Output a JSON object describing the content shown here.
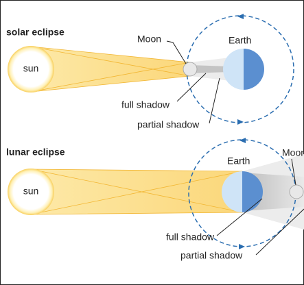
{
  "solar": {
    "title": "solar eclipse",
    "sun": "sun",
    "moon": "Moon",
    "earth": "Earth",
    "full_shadow": "full shadow",
    "partial_shadow": "partial shadow"
  },
  "lunar": {
    "title": "lunar eclipse",
    "sun": "sun",
    "moon": "Moon",
    "earth": "Earth",
    "full_shadow": "full shadow",
    "partial_shadow": "partial shadow"
  }
}
